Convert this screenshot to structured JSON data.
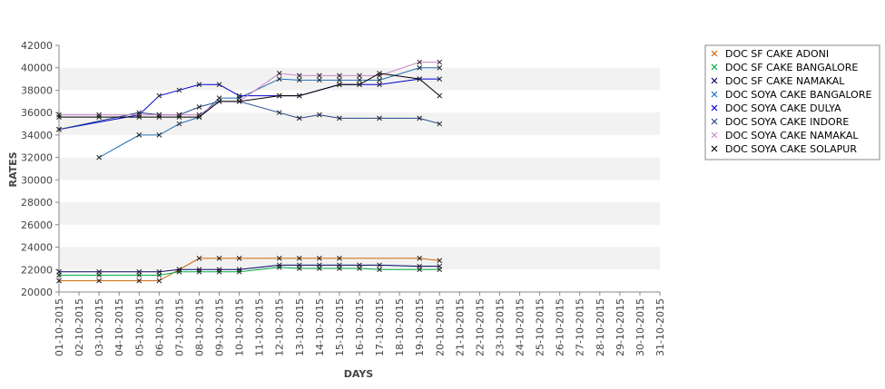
{
  "chart_data": {
    "type": "line",
    "xlabel": "DAYS",
    "ylabel": "RATES",
    "ylim": [
      20000,
      42000
    ],
    "y_ticks": [
      20000,
      22000,
      24000,
      26000,
      28000,
      30000,
      32000,
      34000,
      36000,
      38000,
      40000,
      42000
    ],
    "grid": "alternating horizontal bands",
    "legend_position": "right",
    "categories": [
      "01-10-2015",
      "02-10-2015",
      "03-10-2015",
      "04-10-2015",
      "05-10-2015",
      "06-10-2015",
      "07-10-2015",
      "08-10-2015",
      "09-10-2015",
      "10-10-2015",
      "11-10-2015",
      "12-10-2015",
      "13-10-2015",
      "14-10-2015",
      "15-10-2015",
      "16-10-2015",
      "17-10-2015",
      "18-10-2015",
      "19-10-2015",
      "20-10-2015",
      "21-10-2015",
      "22-10-2015",
      "23-10-2015",
      "24-10-2015",
      "25-10-2015",
      "26-10-2015",
      "27-10-2015",
      "28-10-2015",
      "29-10-2015",
      "30-10-2015",
      "31-10-2015"
    ],
    "series": [
      {
        "name": "DOC SF CAKE ADONI",
        "color": "#cc6600",
        "points": [
          [
            "01-10-2015",
            21000
          ],
          [
            "03-10-2015",
            21000
          ],
          [
            "05-10-2015",
            21000
          ],
          [
            "06-10-2015",
            21000
          ],
          [
            "07-10-2015",
            22000
          ],
          [
            "08-10-2015",
            23000
          ],
          [
            "09-10-2015",
            23000
          ],
          [
            "10-10-2015",
            23000
          ],
          [
            "12-10-2015",
            23000
          ],
          [
            "13-10-2015",
            23000
          ],
          [
            "14-10-2015",
            23000
          ],
          [
            "15-10-2015",
            23000
          ],
          [
            "19-10-2015",
            23000
          ],
          [
            "20-10-2015",
            22800
          ]
        ]
      },
      {
        "name": "DOC SF CAKE BANGALORE",
        "color": "#00aa44",
        "points": [
          [
            "01-10-2015",
            21500
          ],
          [
            "03-10-2015",
            21500
          ],
          [
            "05-10-2015",
            21500
          ],
          [
            "06-10-2015",
            21500
          ],
          [
            "07-10-2015",
            21800
          ],
          [
            "08-10-2015",
            21800
          ],
          [
            "09-10-2015",
            21800
          ],
          [
            "10-10-2015",
            21800
          ],
          [
            "12-10-2015",
            22200
          ],
          [
            "13-10-2015",
            22100
          ],
          [
            "14-10-2015",
            22100
          ],
          [
            "15-10-2015",
            22100
          ],
          [
            "16-10-2015",
            22100
          ],
          [
            "17-10-2015",
            22000
          ],
          [
            "19-10-2015",
            22000
          ],
          [
            "20-10-2015",
            22000
          ]
        ]
      },
      {
        "name": "DOC SF CAKE NAMAKAL",
        "color": "#000066",
        "points": [
          [
            "01-10-2015",
            21800
          ],
          [
            "03-10-2015",
            21800
          ],
          [
            "05-10-2015",
            21800
          ],
          [
            "06-10-2015",
            21800
          ],
          [
            "07-10-2015",
            22000
          ],
          [
            "08-10-2015",
            22000
          ],
          [
            "09-10-2015",
            22000
          ],
          [
            "10-10-2015",
            22000
          ],
          [
            "12-10-2015",
            22400
          ],
          [
            "13-10-2015",
            22400
          ],
          [
            "14-10-2015",
            22400
          ],
          [
            "15-10-2015",
            22400
          ],
          [
            "16-10-2015",
            22400
          ],
          [
            "17-10-2015",
            22400
          ],
          [
            "19-10-2015",
            22300
          ],
          [
            "20-10-2015",
            22300
          ]
        ]
      },
      {
        "name": "DOC SOYA CAKE BANGALORE",
        "color": "#1f6fb5",
        "points": [
          [
            "03-10-2015",
            32000
          ],
          [
            "05-10-2015",
            34000
          ],
          [
            "06-10-2015",
            34000
          ],
          [
            "07-10-2015",
            35000
          ],
          [
            "08-10-2015",
            35600
          ],
          [
            "09-10-2015",
            37300
          ],
          [
            "10-10-2015",
            37300
          ],
          [
            "12-10-2015",
            39000
          ],
          [
            "13-10-2015",
            38900
          ],
          [
            "14-10-2015",
            38900
          ],
          [
            "15-10-2015",
            38900
          ],
          [
            "16-10-2015",
            38900
          ],
          [
            "17-10-2015",
            38900
          ],
          [
            "19-10-2015",
            40000
          ],
          [
            "20-10-2015",
            40000
          ]
        ]
      },
      {
        "name": "DOC SOYA CAKE DULYA",
        "color": "#0000cc",
        "points": [
          [
            "01-10-2015",
            34500
          ],
          [
            "05-10-2015",
            35800
          ],
          [
            "06-10-2015",
            37500
          ],
          [
            "07-10-2015",
            38000
          ],
          [
            "08-10-2015",
            38500
          ],
          [
            "09-10-2015",
            38500
          ],
          [
            "10-10-2015",
            37500
          ],
          [
            "12-10-2015",
            37500
          ],
          [
            "13-10-2015",
            37500
          ],
          [
            "15-10-2015",
            38500
          ],
          [
            "16-10-2015",
            38500
          ],
          [
            "17-10-2015",
            38500
          ],
          [
            "19-10-2015",
            39000
          ],
          [
            "20-10-2015",
            39000
          ]
        ]
      },
      {
        "name": "DOC SOYA CAKE INDORE",
        "color": "#224488",
        "points": [
          [
            "01-10-2015",
            34500
          ],
          [
            "05-10-2015",
            36000
          ],
          [
            "06-10-2015",
            35800
          ],
          [
            "07-10-2015",
            35800
          ],
          [
            "08-10-2015",
            36500
          ],
          [
            "09-10-2015",
            37000
          ],
          [
            "10-10-2015",
            37000
          ],
          [
            "12-10-2015",
            36000
          ],
          [
            "13-10-2015",
            35500
          ],
          [
            "14-10-2015",
            35800
          ],
          [
            "15-10-2015",
            35500
          ],
          [
            "17-10-2015",
            35500
          ],
          [
            "19-10-2015",
            35500
          ],
          [
            "20-10-2015",
            35000
          ]
        ]
      },
      {
        "name": "DOC SOYA CAKE NAMAKAL",
        "color": "#cc88cc",
        "points": [
          [
            "01-10-2015",
            35800
          ],
          [
            "03-10-2015",
            35800
          ],
          [
            "05-10-2015",
            35800
          ],
          [
            "06-10-2015",
            35800
          ],
          [
            "07-10-2015",
            35800
          ],
          [
            "08-10-2015",
            35800
          ],
          [
            "09-10-2015",
            37000
          ],
          [
            "10-10-2015",
            37000
          ],
          [
            "12-10-2015",
            39500
          ],
          [
            "13-10-2015",
            39300
          ],
          [
            "14-10-2015",
            39300
          ],
          [
            "15-10-2015",
            39300
          ],
          [
            "16-10-2015",
            39300
          ],
          [
            "17-10-2015",
            39300
          ],
          [
            "19-10-2015",
            40500
          ],
          [
            "20-10-2015",
            40500
          ]
        ]
      },
      {
        "name": "DOC SOYA CAKE SOLAPUR",
        "color": "#000000",
        "points": [
          [
            "01-10-2015",
            35600
          ],
          [
            "03-10-2015",
            35600
          ],
          [
            "05-10-2015",
            35600
          ],
          [
            "06-10-2015",
            35600
          ],
          [
            "07-10-2015",
            35600
          ],
          [
            "08-10-2015",
            35600
          ],
          [
            "09-10-2015",
            37000
          ],
          [
            "10-10-2015",
            37000
          ],
          [
            "12-10-2015",
            37500
          ],
          [
            "13-10-2015",
            37500
          ],
          [
            "15-10-2015",
            38500
          ],
          [
            "16-10-2015",
            38500
          ],
          [
            "17-10-2015",
            39500
          ],
          [
            "19-10-2015",
            39000
          ],
          [
            "20-10-2015",
            37500
          ]
        ]
      }
    ]
  }
}
